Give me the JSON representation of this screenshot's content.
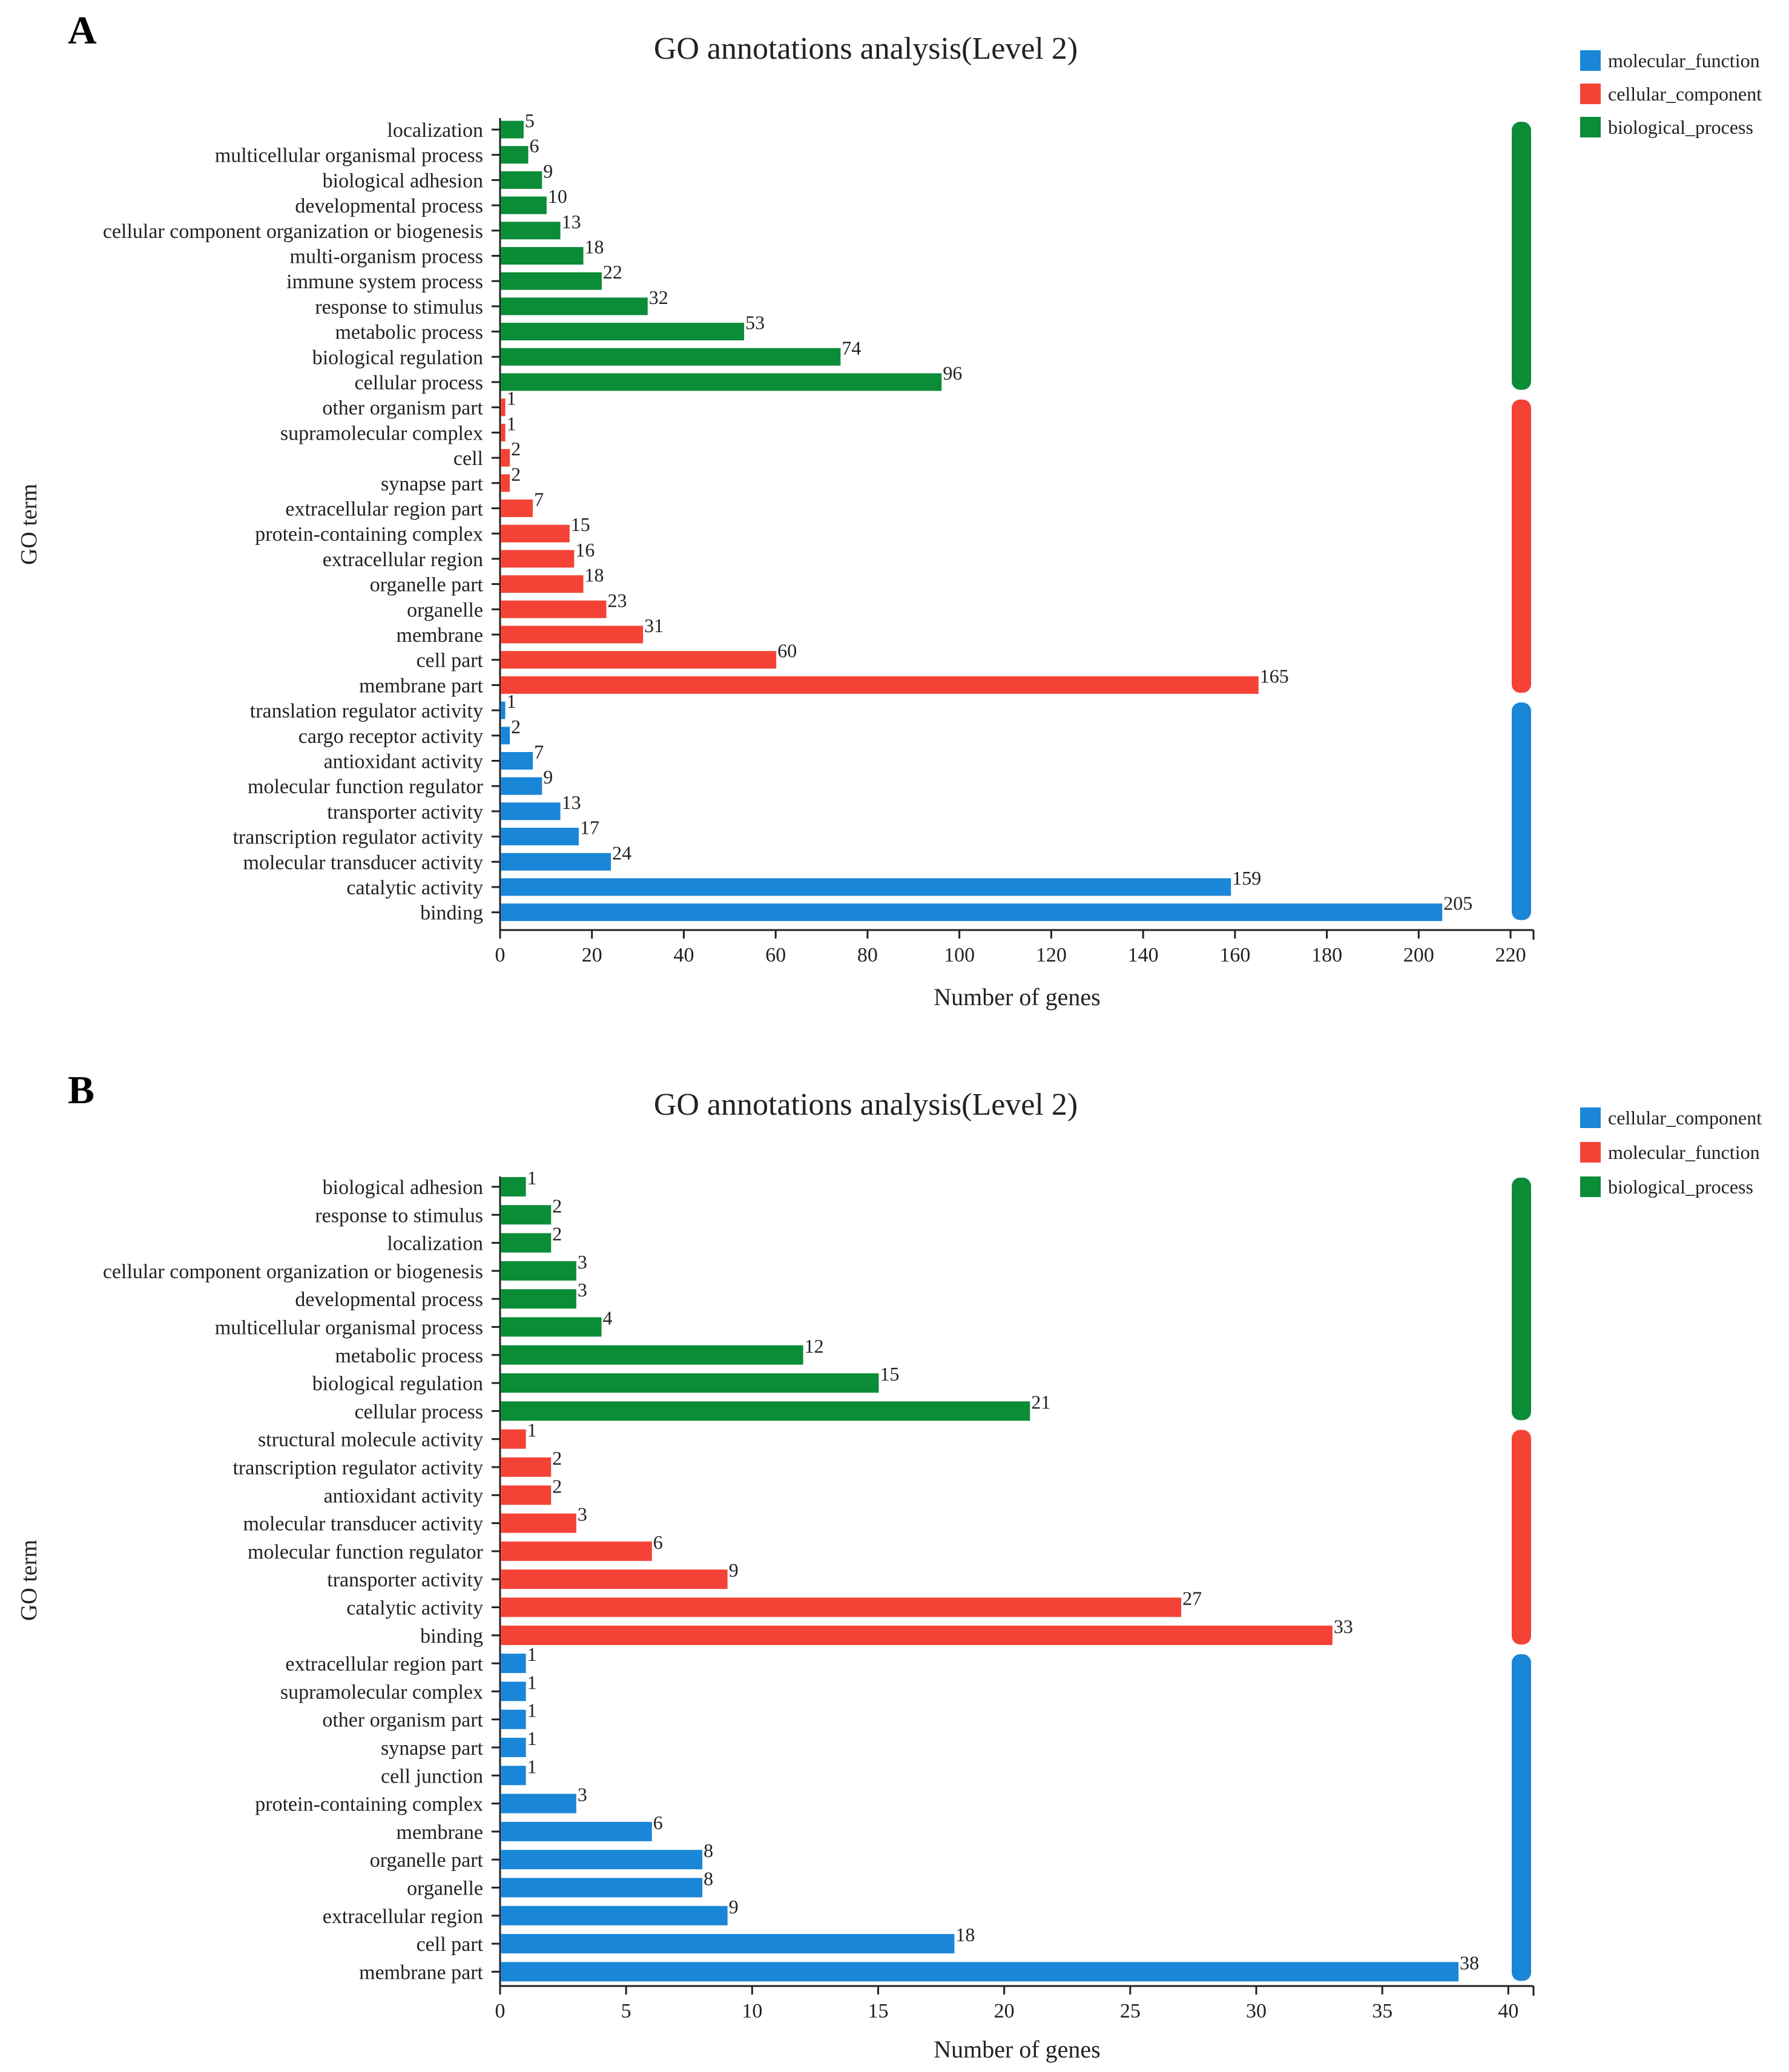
{
  "colors": {
    "blue": "#1a86d8",
    "red": "#f44336",
    "green": "#0b8c37",
    "axis": "#222222",
    "text": "#222222"
  },
  "chart_data": [
    {
      "type": "bar",
      "orientation": "horizontal",
      "panel_label": "A",
      "title": "GO annotations analysis(Level 2)",
      "xlabel": "Number of genes",
      "ylabel": "GO term",
      "xlim": [
        0,
        225
      ],
      "xticks": [
        0,
        20,
        40,
        60,
        80,
        100,
        120,
        140,
        160,
        180,
        200,
        220
      ],
      "legend": [
        {
          "name": "molecular_function",
          "color": "#1a86d8"
        },
        {
          "name": "cellular_component",
          "color": "#f44336"
        },
        {
          "name": "biological_process",
          "color": "#0b8c37"
        }
      ],
      "categories": [
        "localization",
        "multicellular organismal process",
        "biological adhesion",
        "developmental process",
        "cellular component organization or biogenesis",
        "multi-organism process",
        "immune system process",
        "response to stimulus",
        "metabolic process",
        "biological regulation",
        "cellular process",
        "other organism part",
        "supramolecular complex",
        "cell",
        "synapse part",
        "extracellular region part",
        "protein-containing complex",
        "extracellular region",
        "organelle part",
        "organelle",
        "membrane",
        "cell part",
        "membrane part",
        "translation regulator activity",
        "cargo receptor activity",
        "antioxidant activity",
        "molecular function regulator",
        "transporter activity",
        "transcription regulator activity",
        "molecular transducer activity",
        "catalytic activity",
        "binding"
      ],
      "values": [
        5,
        6,
        9,
        10,
        13,
        18,
        22,
        32,
        53,
        74,
        96,
        1,
        1,
        2,
        2,
        7,
        15,
        16,
        18,
        23,
        31,
        60,
        165,
        1,
        2,
        7,
        9,
        13,
        17,
        24,
        159,
        205
      ],
      "bar_colors": [
        "#0b8c37",
        "#0b8c37",
        "#0b8c37",
        "#0b8c37",
        "#0b8c37",
        "#0b8c37",
        "#0b8c37",
        "#0b8c37",
        "#0b8c37",
        "#0b8c37",
        "#0b8c37",
        "#f44336",
        "#f44336",
        "#f44336",
        "#f44336",
        "#f44336",
        "#f44336",
        "#f44336",
        "#f44336",
        "#f44336",
        "#f44336",
        "#f44336",
        "#f44336",
        "#1a86d8",
        "#1a86d8",
        "#1a86d8",
        "#1a86d8",
        "#1a86d8",
        "#1a86d8",
        "#1a86d8",
        "#1a86d8",
        "#1a86d8"
      ],
      "group_bars": [
        {
          "color": "#0b8c37",
          "from": 0,
          "to": 10
        },
        {
          "color": "#f44336",
          "from": 11,
          "to": 22
        },
        {
          "color": "#1a86d8",
          "from": 23,
          "to": 31
        }
      ]
    },
    {
      "type": "bar",
      "orientation": "horizontal",
      "panel_label": "B",
      "title": "GO annotations analysis(Level 2)",
      "xlabel": "Number of genes",
      "ylabel": "GO term",
      "xlim": [
        0,
        41
      ],
      "xticks": [
        0,
        5,
        10,
        15,
        20,
        25,
        30,
        35,
        40
      ],
      "legend": [
        {
          "name": "cellular_component",
          "color": "#1a86d8"
        },
        {
          "name": "molecular_function",
          "color": "#f44336"
        },
        {
          "name": "biological_process",
          "color": "#0b8c37"
        }
      ],
      "categories": [
        "biological adhesion",
        "response to stimulus",
        "localization",
        "cellular component organization or biogenesis",
        "developmental process",
        "multicellular organismal process",
        "metabolic process",
        "biological regulation",
        "cellular process",
        "structural molecule activity",
        "transcription regulator activity",
        "antioxidant activity",
        "molecular transducer activity",
        "molecular function regulator",
        "transporter activity",
        "catalytic activity",
        "binding",
        "extracellular region part",
        "supramolecular complex",
        "other organism part",
        "synapse part",
        "cell junction",
        "protein-containing complex",
        "membrane",
        "organelle part",
        "organelle",
        "extracellular region",
        "cell part",
        "membrane part"
      ],
      "values": [
        1,
        2,
        2,
        3,
        3,
        4,
        12,
        15,
        21,
        1,
        2,
        2,
        3,
        6,
        9,
        27,
        33,
        1,
        1,
        1,
        1,
        1,
        3,
        6,
        8,
        8,
        9,
        18,
        38
      ],
      "bar_colors": [
        "#0b8c37",
        "#0b8c37",
        "#0b8c37",
        "#0b8c37",
        "#0b8c37",
        "#0b8c37",
        "#0b8c37",
        "#0b8c37",
        "#0b8c37",
        "#f44336",
        "#f44336",
        "#f44336",
        "#f44336",
        "#f44336",
        "#f44336",
        "#f44336",
        "#f44336",
        "#1a86d8",
        "#1a86d8",
        "#1a86d8",
        "#1a86d8",
        "#1a86d8",
        "#1a86d8",
        "#1a86d8",
        "#1a86d8",
        "#1a86d8",
        "#1a86d8",
        "#1a86d8",
        "#1a86d8"
      ],
      "group_bars": [
        {
          "color": "#0b8c37",
          "from": 0,
          "to": 8
        },
        {
          "color": "#f44336",
          "from": 9,
          "to": 16
        },
        {
          "color": "#1a86d8",
          "from": 17,
          "to": 28
        }
      ]
    }
  ]
}
